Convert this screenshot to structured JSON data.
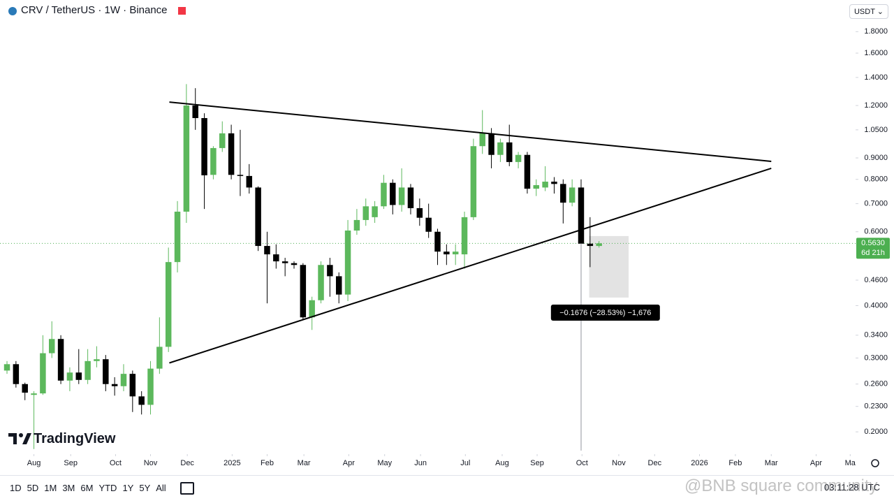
{
  "header": {
    "symbol": "CRV / TetherUS · 1W · Binance",
    "currency": "USDT ⌄"
  },
  "footer": {
    "logo": "TradingView",
    "ranges": [
      "1D",
      "5D",
      "1M",
      "3M",
      "6M",
      "YTD",
      "1Y",
      "5Y",
      "All"
    ],
    "clock": "03:11:28 UTC",
    "watermark": "@BNB square community"
  },
  "chart_data": {
    "type": "candlestick",
    "log_scale": true,
    "up_color": "#5cb85c",
    "down_color": "#000000",
    "categories": [
      null,
      null,
      null,
      null,
      null,
      null,
      null,
      null,
      null,
      null,
      null,
      null,
      null,
      null,
      null,
      null,
      null,
      null,
      null,
      null,
      null,
      null,
      null,
      null,
      null,
      null,
      null,
      null,
      null,
      null,
      null,
      null,
      null,
      null,
      null,
      null,
      null,
      null,
      null,
      null,
      null,
      null,
      null,
      null,
      null,
      null,
      null,
      null,
      null,
      null,
      null,
      null,
      null,
      null,
      null,
      null,
      null,
      null,
      null,
      null,
      null,
      null,
      null,
      null,
      null,
      null,
      null
    ],
    "open": [
      0.28,
      0.29,
      0.26,
      0.245,
      0.247,
      0.308,
      0.333,
      0.265,
      0.277,
      0.266,
      0.295,
      0.298,
      0.26,
      0.257,
      0.275,
      0.243,
      0.232,
      0.283,
      0.319,
      0.508,
      0.67,
      1.2,
      1.12,
      0.82,
      0.95,
      1.03,
      0.82,
      0.815,
      0.765,
      0.555,
      0.53,
      0.51,
      0.505,
      0.5,
      0.375,
      0.412,
      0.5,
      0.47,
      0.425,
      0.604,
      0.64,
      0.65,
      0.69,
      0.785,
      0.695,
      0.765,
      0.683,
      0.648,
      0.6,
      0.538,
      0.53,
      0.53,
      0.65,
      0.96,
      1.03,
      0.915,
      0.98,
      0.88,
      0.915,
      0.76,
      0.765,
      0.79,
      0.78,
      0.704,
      0.765,
      0.562,
      0.555
    ],
    "high": [
      0.295,
      0.295,
      0.262,
      0.25,
      0.34,
      0.367,
      0.34,
      0.285,
      0.315,
      0.315,
      0.32,
      0.305,
      0.27,
      0.29,
      0.28,
      0.25,
      0.295,
      0.375,
      0.55,
      0.71,
      1.35,
      1.32,
      1.15,
      0.96,
      1.1,
      1.08,
      1.05,
      0.87,
      0.77,
      0.6,
      0.56,
      0.52,
      0.51,
      0.505,
      0.42,
      0.51,
      0.52,
      0.48,
      0.64,
      0.68,
      0.72,
      0.71,
      0.82,
      0.8,
      0.85,
      0.78,
      0.72,
      0.7,
      0.61,
      0.56,
      0.56,
      0.67,
      1.0,
      1.17,
      1.06,
      1.0,
      1.08,
      0.93,
      0.93,
      0.8,
      0.86,
      0.81,
      0.8,
      0.8,
      0.8,
      0.65,
      0.57
    ],
    "low": [
      0.275,
      0.255,
      0.238,
      0.182,
      0.245,
      0.3,
      0.26,
      0.25,
      0.26,
      0.26,
      0.285,
      0.25,
      0.244,
      0.25,
      0.223,
      0.22,
      0.22,
      0.275,
      0.31,
      0.48,
      0.63,
      1.05,
      0.68,
      0.8,
      0.93,
      0.8,
      0.73,
      0.74,
      0.54,
      0.405,
      0.49,
      0.47,
      0.49,
      0.37,
      0.35,
      0.405,
      0.42,
      0.405,
      0.41,
      0.59,
      0.62,
      0.63,
      0.68,
      0.66,
      0.67,
      0.66,
      0.62,
      0.58,
      0.5,
      0.5,
      0.5,
      0.49,
      0.64,
      0.92,
      0.85,
      0.88,
      0.86,
      0.85,
      0.74,
      0.73,
      0.75,
      0.74,
      0.628,
      0.69,
      0.183,
      0.494,
      0.55
    ],
    "close": [
      0.29,
      0.26,
      0.248,
      0.247,
      0.308,
      0.333,
      0.265,
      0.277,
      0.266,
      0.295,
      0.298,
      0.26,
      0.257,
      0.275,
      0.243,
      0.232,
      0.283,
      0.319,
      0.508,
      0.67,
      1.2,
      1.12,
      0.818,
      0.95,
      1.03,
      0.82,
      0.815,
      0.765,
      0.555,
      0.53,
      0.51,
      0.505,
      0.5,
      0.375,
      0.412,
      0.5,
      0.47,
      0.425,
      0.604,
      0.64,
      0.69,
      0.69,
      0.785,
      0.695,
      0.765,
      0.683,
      0.648,
      0.6,
      0.538,
      0.53,
      0.538,
      0.65,
      0.96,
      1.03,
      0.915,
      0.98,
      0.88,
      0.915,
      0.76,
      0.775,
      0.79,
      0.78,
      0.704,
      0.765,
      0.562,
      0.555,
      0.563
    ],
    "xlim": [
      -0.78,
      94.6
    ],
    "xticks": [
      {
        "value": 3.0,
        "label": "Aug"
      },
      {
        "value": 7.1,
        "label": "Sep"
      },
      {
        "value": 12.1,
        "label": "Oct"
      },
      {
        "value": 16.0,
        "label": "Nov"
      },
      {
        "value": 20.1,
        "label": "Dec"
      },
      {
        "value": 25.1,
        "label": "2025"
      },
      {
        "value": 29.0,
        "label": "Feb"
      },
      {
        "value": 33.1,
        "label": "Mar"
      },
      {
        "value": 38.1,
        "label": "Apr"
      },
      {
        "value": 42.1,
        "label": "May"
      },
      {
        "value": 46.1,
        "label": "Jun"
      },
      {
        "value": 51.1,
        "label": "Jul"
      },
      {
        "value": 55.2,
        "label": "Aug"
      },
      {
        "value": 59.1,
        "label": "Sep"
      },
      {
        "value": 64.1,
        "label": "Oct"
      },
      {
        "value": 68.2,
        "label": "Nov"
      },
      {
        "value": 72.2,
        "label": "Dec"
      },
      {
        "value": 77.2,
        "label": "2026"
      },
      {
        "value": 81.2,
        "label": "Feb"
      },
      {
        "value": 85.2,
        "label": "Mar"
      },
      {
        "value": 90.2,
        "label": "Apr"
      },
      {
        "value": 94.0,
        "label": "Ma"
      }
    ],
    "ylim": [
      0.177,
      1.909
    ],
    "yticks": [
      {
        "value": 1.8,
        "label": "1.8000"
      },
      {
        "value": 1.6,
        "label": "1.6000"
      },
      {
        "value": 1.4,
        "label": "1.4000"
      },
      {
        "value": 1.2,
        "label": "1.2000"
      },
      {
        "value": 1.05,
        "label": "1.0500"
      },
      {
        "value": 0.9,
        "label": "0.9000"
      },
      {
        "value": 0.8,
        "label": "0.8000"
      },
      {
        "value": 0.7,
        "label": "0.7000"
      },
      {
        "value": 0.6,
        "label": "0.6000"
      },
      {
        "value": 0.46,
        "label": "0.4600"
      },
      {
        "value": 0.4,
        "label": "0.4000"
      },
      {
        "value": 0.34,
        "label": "0.3400"
      },
      {
        "value": 0.3,
        "label": "0.3000"
      },
      {
        "value": 0.26,
        "label": "0.2600"
      },
      {
        "value": 0.23,
        "label": "0.2300"
      },
      {
        "value": 0.2,
        "label": "0.2000"
      }
    ],
    "last_price": {
      "value": 0.563,
      "label": "0.5630",
      "countdown": "6d 21h",
      "color": "#4caf50"
    },
    "trendlines": [
      {
        "x": [
          18.1,
          85.2
        ],
        "y": [
          1.223,
          0.883
        ]
      },
      {
        "x": [
          18.1,
          85.2
        ],
        "y": [
          0.292,
          0.85
        ]
      }
    ],
    "measure": {
      "x": [
        64.9,
        69.3
      ],
      "from": 0.586,
      "to": 0.418,
      "label": "−0.1676 (−28.53%) −1,676"
    }
  }
}
